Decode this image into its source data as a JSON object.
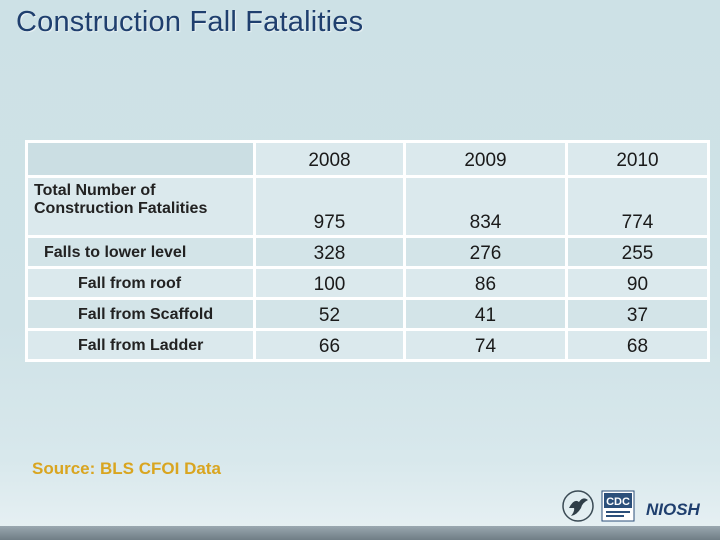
{
  "page": {
    "title": "Construction Fall Fatalities"
  },
  "table": {
    "years": [
      "2008",
      "2009",
      "2010"
    ],
    "rows": [
      {
        "label": "Total Number of Construction Fatalities",
        "values": [
          "975",
          "834",
          "774"
        ]
      },
      {
        "label": "Falls to lower level",
        "values": [
          "328",
          "276",
          "255"
        ]
      },
      {
        "label": "Fall from roof",
        "values": [
          "100",
          "86",
          "90"
        ]
      },
      {
        "label": "Fall from Scaffold",
        "values": [
          "52",
          "41",
          "37"
        ]
      },
      {
        "label": "Fall from Ladder",
        "values": [
          "66",
          "74",
          "68"
        ]
      }
    ]
  },
  "source": "Source:  BLS CFOI  Data",
  "logos": {
    "hhs": "hhs-eagle-icon",
    "cdc": {
      "label": "CDC",
      "icon": "cdc-logo-icon"
    },
    "niosh": {
      "label": "NIOSH",
      "icon": "niosh-logo-icon"
    }
  },
  "colors": {
    "title": "#1f3f6e",
    "source": "#d9a520",
    "background": "#cde1e6",
    "table_border": "#ffffff"
  }
}
